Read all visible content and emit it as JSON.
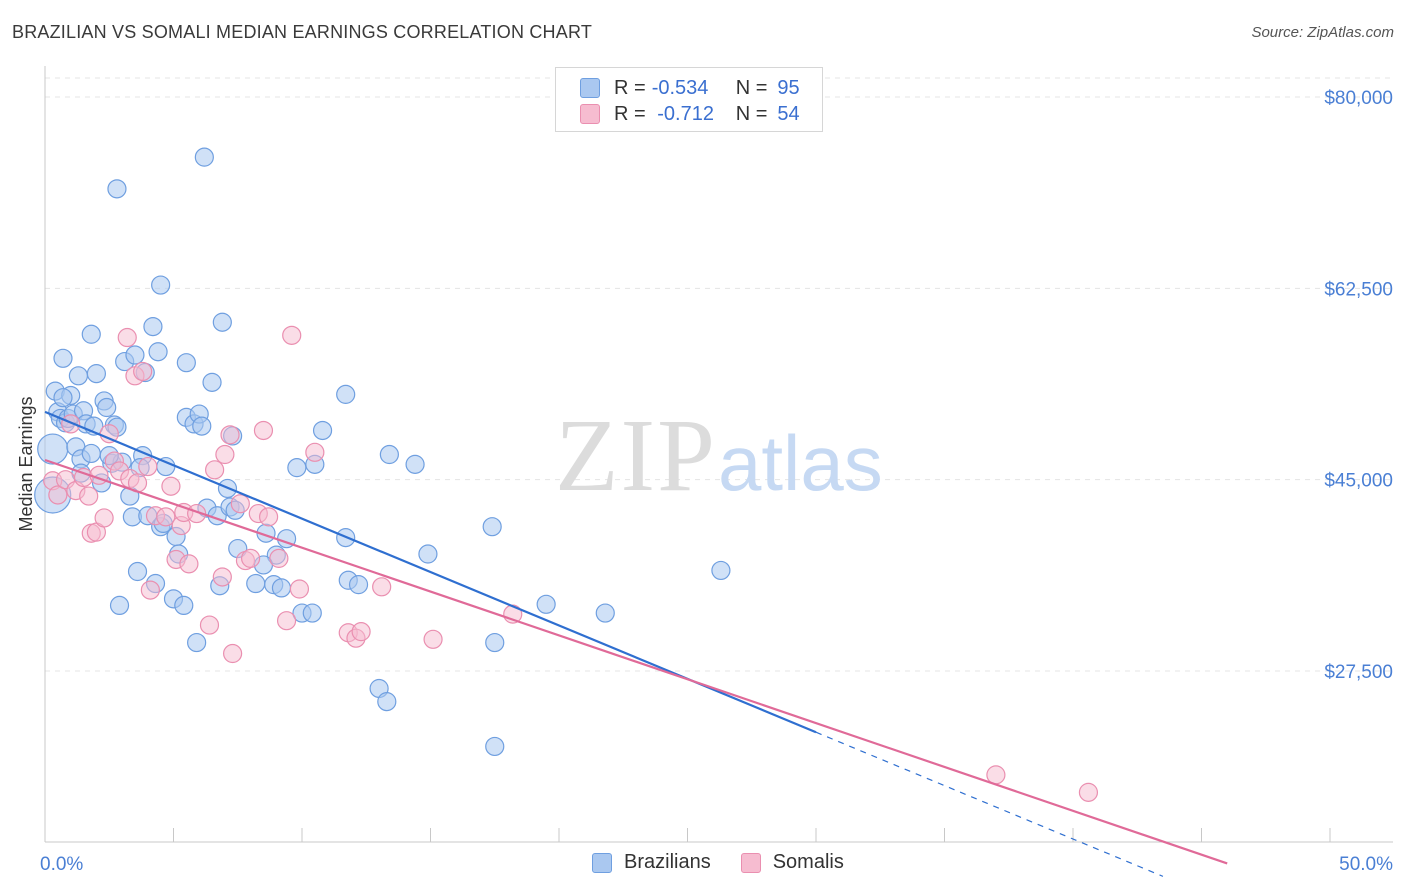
{
  "title": "BRAZILIAN VS SOMALI MEDIAN EARNINGS CORRELATION CHART",
  "source": "Source: ZipAtlas.com",
  "watermark": {
    "zip": "ZIP",
    "atlas": "atlas"
  },
  "legend": {
    "rows": [
      {
        "r_label": "R =",
        "r_value": "-0.534",
        "n_label": "N =",
        "n_value": "95"
      },
      {
        "r_label": "R =",
        "r_value": " -0.712",
        "n_label": "N =",
        "n_value": "54"
      }
    ]
  },
  "bottom_legend": {
    "brazilians": "Brazilians",
    "somalis": "Somalis"
  },
  "colors": {
    "blue_fill": "#aac8f0",
    "blue_stroke": "#6f9fe0",
    "blue_line": "#2f6fd0",
    "pink_fill": "#f6bcd0",
    "pink_stroke": "#ea8fb0",
    "pink_line": "#e06a98"
  },
  "chart_data": {
    "type": "scatter",
    "title": "BRAZILIAN VS SOMALI MEDIAN EARNINGS CORRELATION CHART",
    "xlabel": "",
    "ylabel": "Median Earnings",
    "xlim": [
      0,
      50
    ],
    "ylim": [
      10000,
      83000
    ],
    "x_tick_labels": [
      "0.0%",
      "50.0%"
    ],
    "y_ticks": [
      27500,
      45000,
      62500,
      80000
    ],
    "y_tick_labels": [
      "$27,500",
      "$45,000",
      "$62,500",
      "$80,000"
    ],
    "series": [
      {
        "name": "Brazilians",
        "r": -0.534,
        "n": 95,
        "trendline": {
          "x": [
            0,
            30
          ],
          "y": [
            51200,
            21900
          ],
          "dashed_extension_to_x": 43.5
        },
        "points": [
          [
            0.3,
            47.8
          ],
          [
            0.3,
            43.6
          ],
          [
            0.4,
            53.1
          ],
          [
            0.5,
            51.2
          ],
          [
            0.6,
            50.6
          ],
          [
            0.7,
            56.1
          ],
          [
            0.8,
            50.2
          ],
          [
            0.9,
            50.6
          ],
          [
            1.0,
            52.7
          ],
          [
            1.1,
            51.0
          ],
          [
            1.2,
            48.0
          ],
          [
            1.3,
            54.5
          ],
          [
            1.4,
            46.9
          ],
          [
            1.5,
            51.3
          ],
          [
            1.6,
            50.1
          ],
          [
            1.8,
            58.3
          ],
          [
            1.8,
            47.4
          ],
          [
            2.0,
            54.7
          ],
          [
            2.2,
            44.7
          ],
          [
            2.3,
            52.2
          ],
          [
            2.4,
            51.6
          ],
          [
            2.6,
            46.5
          ],
          [
            2.7,
            50.0
          ],
          [
            2.8,
            49.8
          ],
          [
            2.9,
            33.5
          ],
          [
            3.0,
            46.6
          ],
          [
            3.1,
            55.8
          ],
          [
            3.3,
            43.5
          ],
          [
            3.4,
            41.6
          ],
          [
            3.5,
            56.4
          ],
          [
            3.6,
            36.6
          ],
          [
            3.8,
            47.2
          ],
          [
            3.9,
            54.8
          ],
          [
            4.0,
            41.7
          ],
          [
            4.2,
            59.0
          ],
          [
            4.3,
            35.5
          ],
          [
            4.4,
            56.7
          ],
          [
            4.5,
            40.7
          ],
          [
            4.5,
            62.8
          ],
          [
            4.7,
            46.2
          ],
          [
            5.0,
            34.1
          ],
          [
            5.1,
            39.8
          ],
          [
            5.2,
            38.2
          ],
          [
            5.4,
            33.5
          ],
          [
            5.5,
            55.7
          ],
          [
            5.5,
            50.7
          ],
          [
            5.8,
            50.1
          ],
          [
            5.9,
            30.1
          ],
          [
            6.0,
            51.0
          ],
          [
            6.2,
            74.5
          ],
          [
            6.3,
            42.4
          ],
          [
            6.5,
            53.9
          ],
          [
            6.7,
            41.7
          ],
          [
            6.8,
            35.3
          ],
          [
            6.9,
            59.4
          ],
          [
            7.1,
            44.2
          ],
          [
            7.2,
            42.5
          ],
          [
            7.3,
            49.0
          ],
          [
            7.4,
            42.2
          ],
          [
            7.5,
            38.7
          ],
          [
            8.2,
            35.5
          ],
          [
            8.6,
            40.1
          ],
          [
            8.9,
            35.4
          ],
          [
            9.0,
            38.1
          ],
          [
            9.2,
            35.1
          ],
          [
            9.4,
            39.6
          ],
          [
            9.8,
            46.1
          ],
          [
            10.0,
            32.8
          ],
          [
            10.4,
            32.8
          ],
          [
            10.5,
            46.4
          ],
          [
            10.8,
            49.5
          ],
          [
            11.7,
            39.7
          ],
          [
            11.7,
            52.8
          ],
          [
            11.8,
            35.8
          ],
          [
            12.2,
            35.4
          ],
          [
            13.0,
            25.9
          ],
          [
            13.3,
            24.7
          ],
          [
            13.4,
            47.3
          ],
          [
            14.4,
            46.4
          ],
          [
            14.9,
            38.2
          ],
          [
            17.4,
            40.7
          ],
          [
            17.5,
            30.1
          ],
          [
            17.5,
            20.6
          ],
          [
            19.5,
            33.6
          ],
          [
            21.8,
            32.8
          ],
          [
            26.3,
            36.7
          ],
          [
            2.8,
            71.6
          ],
          [
            1.4,
            45.6
          ],
          [
            3.7,
            46.1
          ],
          [
            0.7,
            52.5
          ],
          [
            1.9,
            49.9
          ],
          [
            2.5,
            47.2
          ],
          [
            4.6,
            41.0
          ],
          [
            6.1,
            49.9
          ],
          [
            8.5,
            37.2
          ]
        ]
      },
      {
        "name": "Somalis",
        "r": -0.712,
        "n": 54,
        "trendline": {
          "x": [
            0,
            46
          ],
          "y": [
            46800,
            9900
          ]
        },
        "points": [
          [
            0.3,
            44.9
          ],
          [
            0.5,
            43.6
          ],
          [
            0.8,
            45.0
          ],
          [
            1.0,
            50.1
          ],
          [
            1.2,
            44.0
          ],
          [
            1.5,
            45.2
          ],
          [
            1.7,
            43.5
          ],
          [
            1.8,
            40.1
          ],
          [
            2.0,
            40.2
          ],
          [
            2.1,
            45.4
          ],
          [
            2.3,
            41.5
          ],
          [
            2.5,
            49.2
          ],
          [
            2.7,
            46.7
          ],
          [
            2.9,
            45.8
          ],
          [
            3.2,
            58.0
          ],
          [
            3.3,
            45.1
          ],
          [
            3.5,
            54.5
          ],
          [
            3.6,
            44.7
          ],
          [
            3.8,
            54.9
          ],
          [
            4.0,
            46.2
          ],
          [
            4.1,
            34.9
          ],
          [
            4.3,
            41.7
          ],
          [
            4.7,
            41.6
          ],
          [
            4.9,
            44.4
          ],
          [
            5.1,
            37.7
          ],
          [
            5.3,
            40.8
          ],
          [
            5.4,
            42.0
          ],
          [
            5.6,
            37.3
          ],
          [
            5.9,
            41.9
          ],
          [
            6.4,
            31.7
          ],
          [
            6.6,
            45.9
          ],
          [
            7.0,
            47.3
          ],
          [
            7.2,
            49.1
          ],
          [
            7.3,
            29.1
          ],
          [
            7.6,
            42.8
          ],
          [
            7.8,
            37.6
          ],
          [
            8.0,
            37.8
          ],
          [
            8.3,
            41.9
          ],
          [
            8.5,
            49.5
          ],
          [
            8.7,
            41.6
          ],
          [
            9.1,
            37.8
          ],
          [
            9.4,
            32.1
          ],
          [
            9.6,
            58.2
          ],
          [
            9.9,
            35.0
          ],
          [
            10.5,
            47.5
          ],
          [
            11.8,
            31.0
          ],
          [
            12.1,
            30.5
          ],
          [
            12.3,
            31.1
          ],
          [
            13.1,
            35.2
          ],
          [
            15.1,
            30.4
          ],
          [
            18.2,
            32.7
          ],
          [
            37.0,
            18.0
          ],
          [
            40.6,
            16.4
          ],
          [
            6.9,
            36.1
          ]
        ]
      }
    ]
  }
}
